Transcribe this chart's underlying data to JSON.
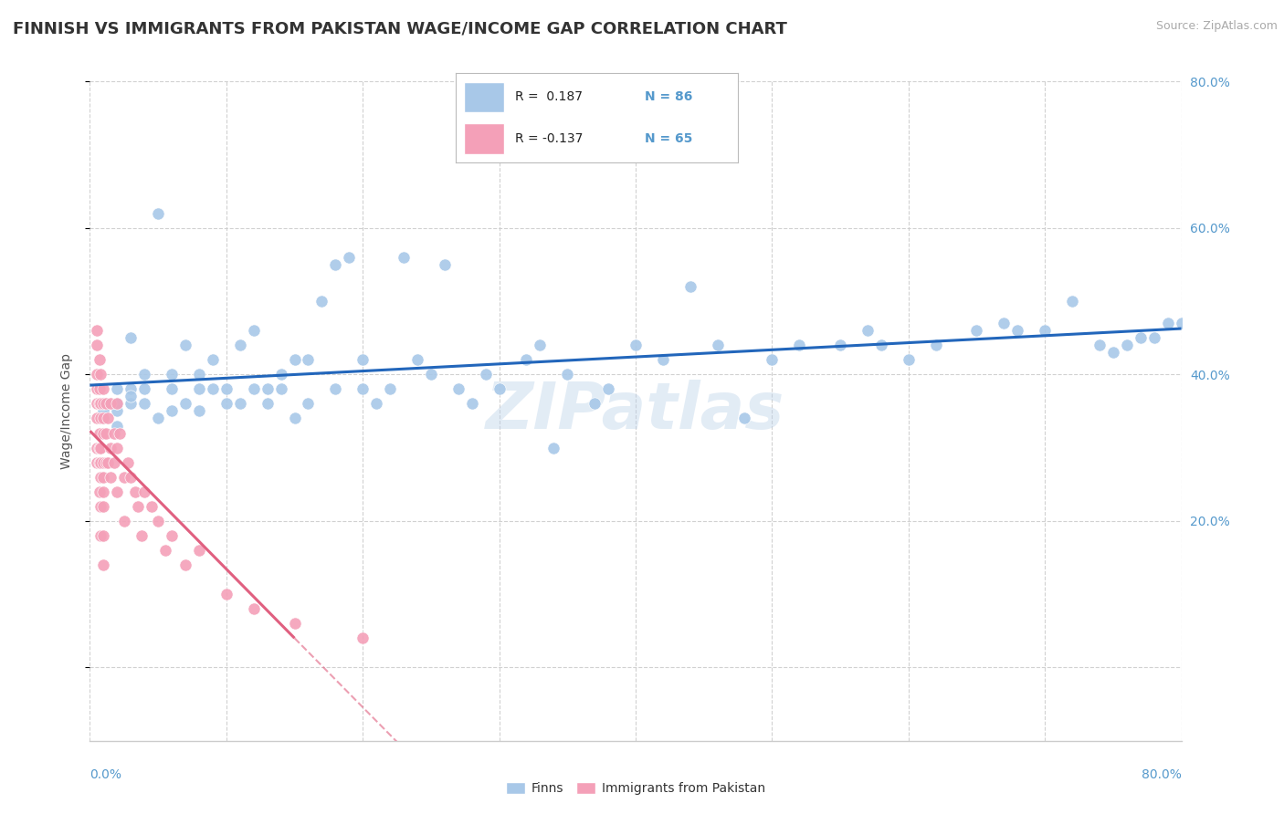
{
  "title": "FINNISH VS IMMIGRANTS FROM PAKISTAN WAGE/INCOME GAP CORRELATION CHART",
  "source": "Source: ZipAtlas.com",
  "ylabel": "Wage/Income Gap",
  "finns_color": "#a8c8e8",
  "pakistan_color": "#f4a0b8",
  "finns_line_color": "#2266bb",
  "pakistan_line_color": "#e06080",
  "watermark": "ZIPatlas",
  "background_color": "#ffffff",
  "grid_color": "#cccccc",
  "title_color": "#333333",
  "axis_color": "#5599cc",
  "finns_scatter": {
    "x": [
      0.01,
      0.01,
      0.01,
      0.02,
      0.02,
      0.02,
      0.02,
      0.03,
      0.03,
      0.03,
      0.03,
      0.04,
      0.04,
      0.04,
      0.05,
      0.05,
      0.06,
      0.06,
      0.06,
      0.07,
      0.07,
      0.08,
      0.08,
      0.08,
      0.09,
      0.09,
      0.1,
      0.1,
      0.11,
      0.11,
      0.12,
      0.12,
      0.13,
      0.13,
      0.14,
      0.14,
      0.15,
      0.15,
      0.16,
      0.16,
      0.17,
      0.18,
      0.18,
      0.19,
      0.2,
      0.2,
      0.21,
      0.22,
      0.23,
      0.24,
      0.25,
      0.26,
      0.27,
      0.28,
      0.29,
      0.3,
      0.32,
      0.33,
      0.34,
      0.35,
      0.37,
      0.38,
      0.4,
      0.42,
      0.44,
      0.46,
      0.48,
      0.5,
      0.52,
      0.55,
      0.57,
      0.58,
      0.6,
      0.62,
      0.65,
      0.67,
      0.68,
      0.7,
      0.72,
      0.74,
      0.75,
      0.76,
      0.77,
      0.78,
      0.79,
      0.8
    ],
    "y": [
      0.34,
      0.35,
      0.36,
      0.33,
      0.35,
      0.36,
      0.38,
      0.38,
      0.36,
      0.37,
      0.45,
      0.36,
      0.38,
      0.4,
      0.34,
      0.62,
      0.38,
      0.4,
      0.35,
      0.44,
      0.36,
      0.38,
      0.4,
      0.35,
      0.42,
      0.38,
      0.36,
      0.38,
      0.44,
      0.36,
      0.46,
      0.38,
      0.36,
      0.38,
      0.38,
      0.4,
      0.42,
      0.34,
      0.36,
      0.42,
      0.5,
      0.38,
      0.55,
      0.56,
      0.38,
      0.42,
      0.36,
      0.38,
      0.56,
      0.42,
      0.4,
      0.55,
      0.38,
      0.36,
      0.4,
      0.38,
      0.42,
      0.44,
      0.3,
      0.4,
      0.36,
      0.38,
      0.44,
      0.42,
      0.52,
      0.44,
      0.34,
      0.42,
      0.44,
      0.44,
      0.46,
      0.44,
      0.42,
      0.44,
      0.46,
      0.47,
      0.46,
      0.46,
      0.5,
      0.44,
      0.43,
      0.44,
      0.45,
      0.45,
      0.47,
      0.47
    ]
  },
  "pakistan_scatter": {
    "x": [
      0.005,
      0.005,
      0.005,
      0.005,
      0.005,
      0.005,
      0.005,
      0.005,
      0.007,
      0.007,
      0.007,
      0.007,
      0.007,
      0.007,
      0.007,
      0.008,
      0.008,
      0.008,
      0.008,
      0.008,
      0.008,
      0.008,
      0.008,
      0.01,
      0.01,
      0.01,
      0.01,
      0.01,
      0.01,
      0.01,
      0.01,
      0.01,
      0.01,
      0.012,
      0.012,
      0.012,
      0.013,
      0.013,
      0.015,
      0.015,
      0.015,
      0.018,
      0.018,
      0.02,
      0.02,
      0.02,
      0.022,
      0.025,
      0.025,
      0.028,
      0.03,
      0.033,
      0.035,
      0.038,
      0.04,
      0.045,
      0.05,
      0.055,
      0.06,
      0.07,
      0.08,
      0.1,
      0.12,
      0.15,
      0.2
    ],
    "y": [
      0.46,
      0.44,
      0.4,
      0.38,
      0.36,
      0.34,
      0.3,
      0.28,
      0.42,
      0.38,
      0.36,
      0.32,
      0.3,
      0.28,
      0.24,
      0.4,
      0.36,
      0.34,
      0.3,
      0.28,
      0.26,
      0.22,
      0.18,
      0.38,
      0.36,
      0.34,
      0.32,
      0.28,
      0.26,
      0.24,
      0.22,
      0.18,
      0.14,
      0.36,
      0.32,
      0.28,
      0.34,
      0.28,
      0.36,
      0.3,
      0.26,
      0.32,
      0.28,
      0.36,
      0.3,
      0.24,
      0.32,
      0.26,
      0.2,
      0.28,
      0.26,
      0.24,
      0.22,
      0.18,
      0.24,
      0.22,
      0.2,
      0.16,
      0.18,
      0.14,
      0.16,
      0.1,
      0.08,
      0.06,
      0.04
    ]
  },
  "xlim": [
    0,
    0.8
  ],
  "ylim": [
    -0.1,
    0.8
  ],
  "yticks": [
    0.0,
    0.2,
    0.4,
    0.6,
    0.8
  ],
  "ytick_labels": [
    "",
    "20.0%",
    "40.0%",
    "60.0%",
    "80.0%"
  ],
  "xticks": [
    0.0,
    0.1,
    0.2,
    0.3,
    0.4,
    0.5,
    0.6,
    0.7,
    0.8
  ]
}
